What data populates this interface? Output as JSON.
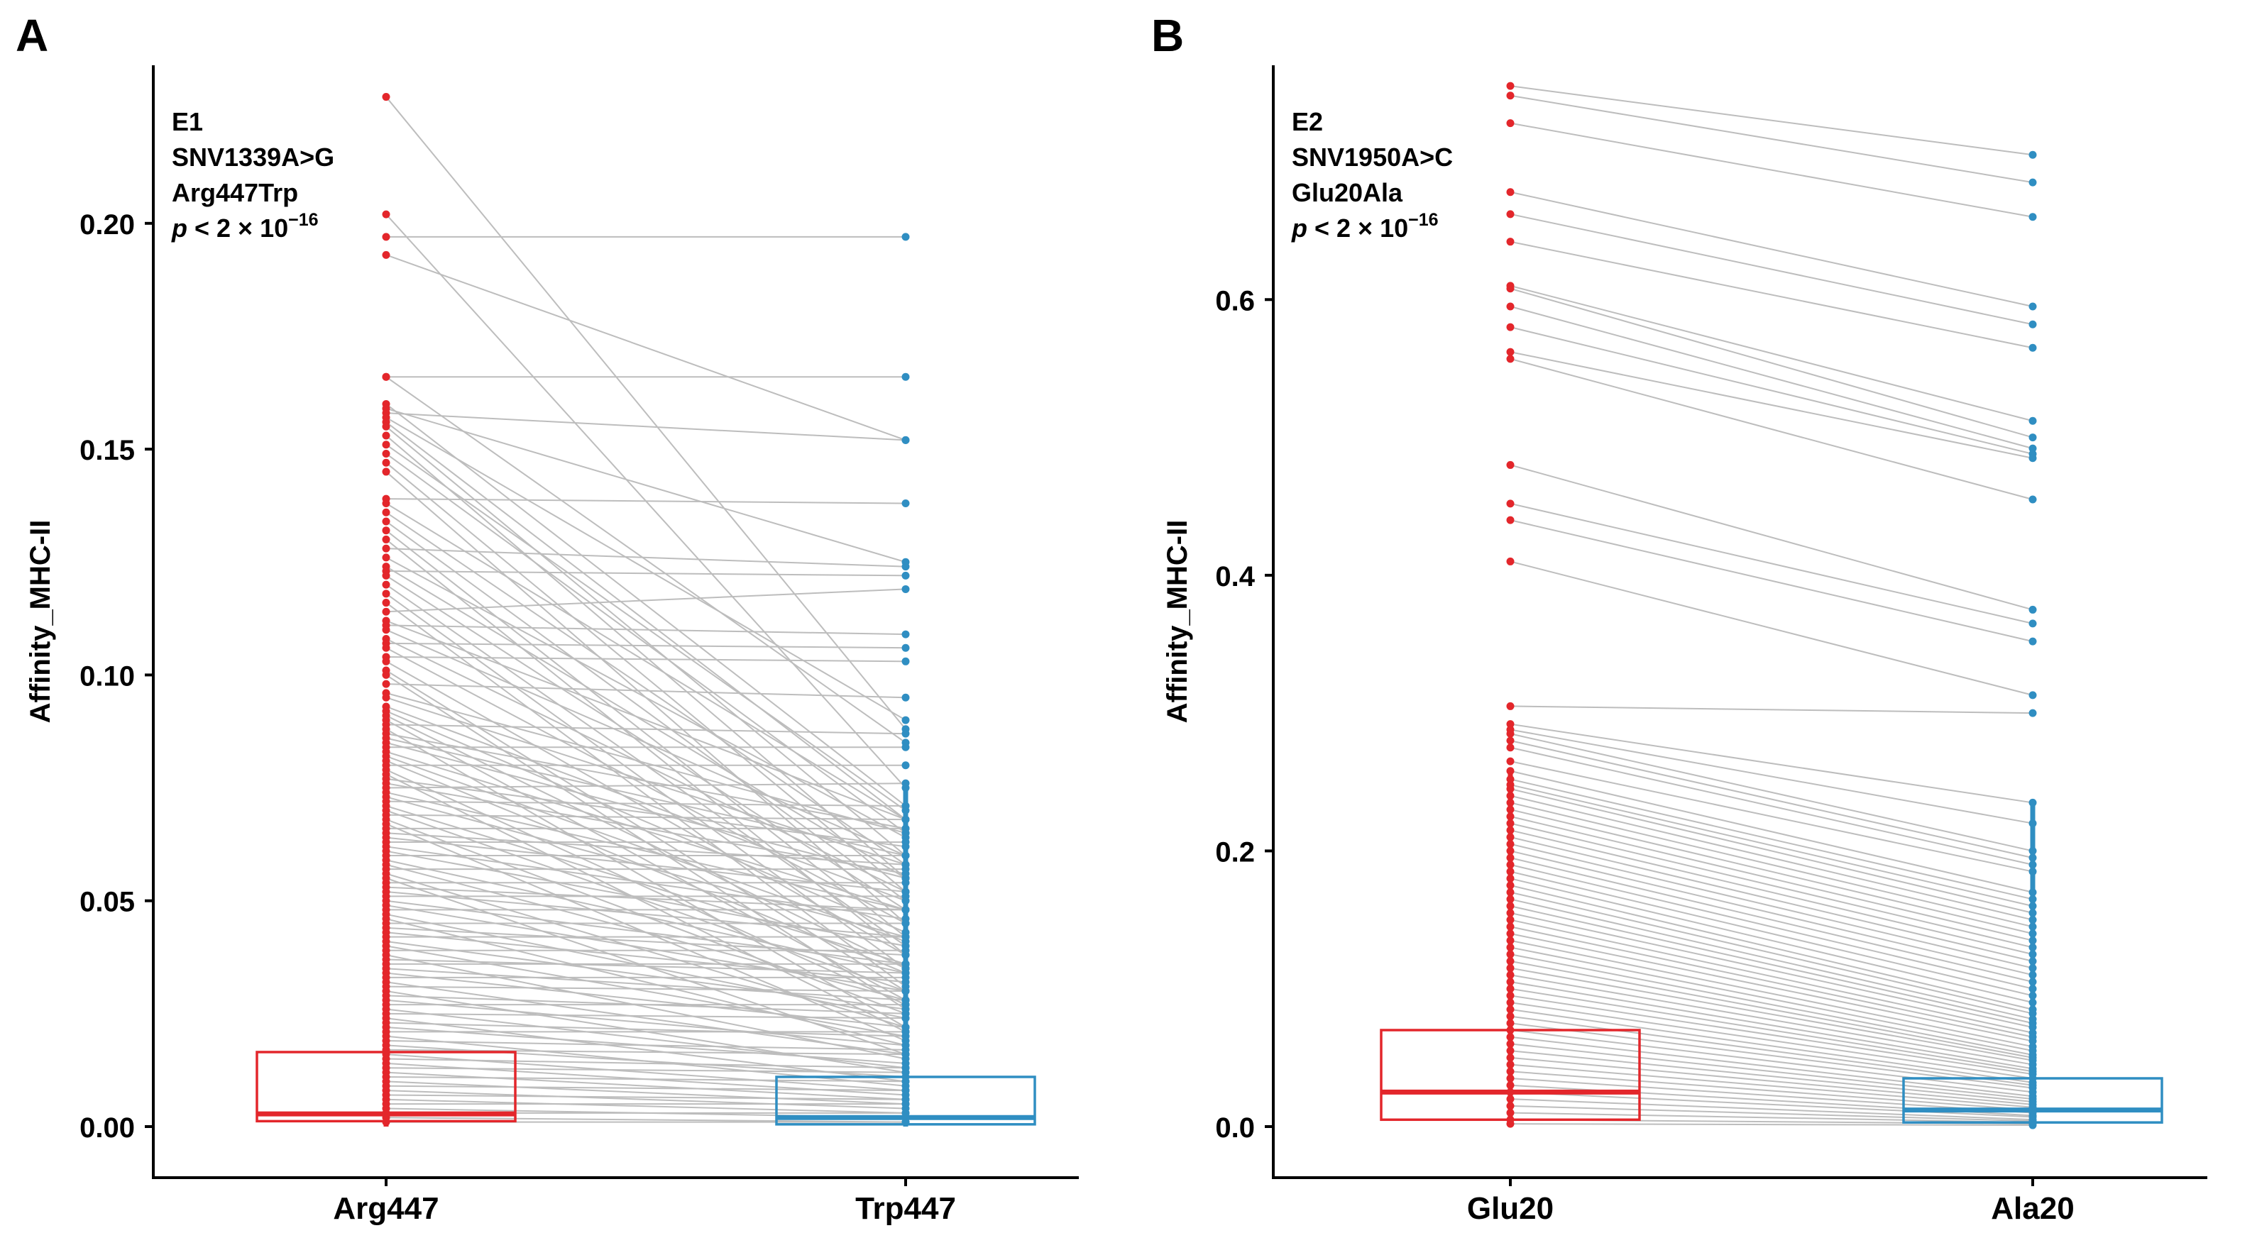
{
  "chart_data": [
    {
      "type": "paired_dot_box",
      "panel_label": "A",
      "ylabel": "Affinity_MHC-II",
      "ylim": [
        0,
        0.235
      ],
      "yticks": [
        0.0,
        0.05,
        0.1,
        0.15,
        0.2
      ],
      "ytick_labels": [
        "0.00",
        "0.05",
        "0.10",
        "0.15",
        "0.20"
      ],
      "categories": [
        "Arg447",
        "Trp447"
      ],
      "colors": [
        "#e3262b",
        "#2f8ec2"
      ],
      "annotation": {
        "lines": [
          "E1",
          "SNV1339A>G",
          "Arg447Trp"
        ],
        "p_prefix": "p",
        "p_rest": " < 2 × 10",
        "p_exponent": "−16"
      },
      "boxes": [
        {
          "q1": 0.0012,
          "median": 0.0028,
          "q3": 0.0165
        },
        {
          "q1": 0.0005,
          "median": 0.002,
          "q3": 0.011
        }
      ],
      "pairs": [
        [
          0.228,
          0.088
        ],
        [
          0.202,
          0.075
        ],
        [
          0.197,
          0.197
        ],
        [
          0.193,
          0.152
        ],
        [
          0.166,
          0.166
        ],
        [
          0.166,
          0.085
        ],
        [
          0.16,
          0.071
        ],
        [
          0.159,
          0.125
        ],
        [
          0.158,
          0.152
        ],
        [
          0.157,
          0.09
        ],
        [
          0.156,
          0.068
        ],
        [
          0.155,
          0.06
        ],
        [
          0.153,
          0.055
        ],
        [
          0.151,
          0.07
        ],
        [
          0.149,
          0.065
        ],
        [
          0.147,
          0.052
        ],
        [
          0.145,
          0.045
        ],
        [
          0.139,
          0.138
        ],
        [
          0.138,
          0.068
        ],
        [
          0.136,
          0.058
        ],
        [
          0.134,
          0.05
        ],
        [
          0.132,
          0.042
        ],
        [
          0.13,
          0.038
        ],
        [
          0.128,
          0.124
        ],
        [
          0.126,
          0.064
        ],
        [
          0.124,
          0.055
        ],
        [
          0.123,
          0.122
        ],
        [
          0.122,
          0.048
        ],
        [
          0.12,
          0.04
        ],
        [
          0.118,
          0.035
        ],
        [
          0.116,
          0.031
        ],
        [
          0.114,
          0.119
        ],
        [
          0.112,
          0.068
        ],
        [
          0.111,
          0.109
        ],
        [
          0.11,
          0.06
        ],
        [
          0.108,
          0.052
        ],
        [
          0.107,
          0.106
        ],
        [
          0.106,
          0.045
        ],
        [
          0.104,
          0.103
        ],
        [
          0.103,
          0.038
        ],
        [
          0.101,
          0.03
        ],
        [
          0.1,
          0.026
        ],
        [
          0.098,
          0.095
        ],
        [
          0.096,
          0.065
        ],
        [
          0.095,
          0.058
        ],
        [
          0.093,
          0.05
        ],
        [
          0.092,
          0.043
        ],
        [
          0.091,
          0.035
        ],
        [
          0.09,
          0.028
        ],
        [
          0.089,
          0.087
        ],
        [
          0.088,
          0.022
        ],
        [
          0.087,
          0.066
        ],
        [
          0.086,
          0.06
        ],
        [
          0.085,
          0.055
        ],
        [
          0.084,
          0.084
        ],
        [
          0.083,
          0.048
        ],
        [
          0.082,
          0.041
        ],
        [
          0.081,
          0.034
        ],
        [
          0.08,
          0.08
        ],
        [
          0.079,
          0.027
        ],
        [
          0.078,
          0.021
        ],
        [
          0.077,
          0.062
        ],
        [
          0.076,
          0.056
        ],
        [
          0.075,
          0.076
        ],
        [
          0.074,
          0.048
        ],
        [
          0.073,
          0.042
        ],
        [
          0.072,
          0.071
        ],
        [
          0.071,
          0.036
        ],
        [
          0.07,
          0.03
        ],
        [
          0.069,
          0.068
        ],
        [
          0.068,
          0.025
        ],
        [
          0.067,
          0.019
        ],
        [
          0.066,
          0.066
        ],
        [
          0.065,
          0.058
        ],
        [
          0.064,
          0.052
        ],
        [
          0.063,
          0.063
        ],
        [
          0.062,
          0.046
        ],
        [
          0.061,
          0.04
        ],
        [
          0.06,
          0.06
        ],
        [
          0.059,
          0.034
        ],
        [
          0.058,
          0.028
        ],
        [
          0.057,
          0.057
        ],
        [
          0.056,
          0.022
        ],
        [
          0.055,
          0.016
        ],
        [
          0.054,
          0.054
        ],
        [
          0.053,
          0.048
        ],
        [
          0.052,
          0.042
        ],
        [
          0.051,
          0.051
        ],
        [
          0.05,
          0.036
        ],
        [
          0.049,
          0.03
        ],
        [
          0.048,
          0.048
        ],
        [
          0.047,
          0.024
        ],
        [
          0.046,
          0.018
        ],
        [
          0.045,
          0.045
        ],
        [
          0.044,
          0.038
        ],
        [
          0.043,
          0.032
        ],
        [
          0.042,
          0.042
        ],
        [
          0.041,
          0.026
        ],
        [
          0.04,
          0.02
        ],
        [
          0.039,
          0.039
        ],
        [
          0.038,
          0.015
        ],
        [
          0.037,
          0.034
        ],
        [
          0.036,
          0.036
        ],
        [
          0.035,
          0.028
        ],
        [
          0.034,
          0.022
        ],
        [
          0.033,
          0.033
        ],
        [
          0.032,
          0.016
        ],
        [
          0.031,
          0.03
        ],
        [
          0.03,
          0.012
        ],
        [
          0.029,
          0.025
        ],
        [
          0.028,
          0.018
        ],
        [
          0.027,
          0.027
        ],
        [
          0.026,
          0.013
        ],
        [
          0.025,
          0.024
        ],
        [
          0.024,
          0.01
        ],
        [
          0.023,
          0.02
        ],
        [
          0.022,
          0.014
        ],
        [
          0.021,
          0.021
        ],
        [
          0.02,
          0.009
        ],
        [
          0.019,
          0.017
        ],
        [
          0.018,
          0.011
        ],
        [
          0.017,
          0.016
        ],
        [
          0.016,
          0.008
        ],
        [
          0.015,
          0.013
        ],
        [
          0.014,
          0.007
        ],
        [
          0.013,
          0.012
        ],
        [
          0.012,
          0.006
        ],
        [
          0.011,
          0.01
        ],
        [
          0.01,
          0.005
        ],
        [
          0.009,
          0.008
        ],
        [
          0.008,
          0.004
        ],
        [
          0.007,
          0.006
        ],
        [
          0.006,
          0.003
        ],
        [
          0.005,
          0.005
        ],
        [
          0.004,
          0.002
        ],
        [
          0.003,
          0.003
        ],
        [
          0.002,
          0.001
        ],
        [
          0.001,
          0.001
        ]
      ]
    },
    {
      "type": "paired_dot_box",
      "panel_label": "B",
      "ylabel": "Affinity_MHC-II",
      "ylim": [
        0,
        0.77
      ],
      "yticks": [
        0.0,
        0.2,
        0.4,
        0.6
      ],
      "ytick_labels": [
        "0.0",
        "0.2",
        "0.4",
        "0.6"
      ],
      "categories": [
        "Glu20",
        "Ala20"
      ],
      "colors": [
        "#e3262b",
        "#2f8ec2"
      ],
      "annotation": {
        "lines": [
          "E2",
          "SNV1950A>C",
          "Glu20Ala"
        ],
        "p_prefix": "p",
        "p_rest": " < 2 × 10",
        "p_exponent": "−16"
      },
      "boxes": [
        {
          "q1": 0.005,
          "median": 0.025,
          "q3": 0.07
        },
        {
          "q1": 0.003,
          "median": 0.012,
          "q3": 0.035
        }
      ],
      "pairs": [
        [
          0.755,
          0.705
        ],
        [
          0.748,
          0.685
        ],
        [
          0.728,
          0.66
        ],
        [
          0.678,
          0.595
        ],
        [
          0.662,
          0.582
        ],
        [
          0.642,
          0.565
        ],
        [
          0.61,
          0.512
        ],
        [
          0.608,
          0.5
        ],
        [
          0.595,
          0.492
        ],
        [
          0.58,
          0.488
        ],
        [
          0.562,
          0.485
        ],
        [
          0.557,
          0.455
        ],
        [
          0.48,
          0.375
        ],
        [
          0.452,
          0.365
        ],
        [
          0.44,
          0.352
        ],
        [
          0.41,
          0.313
        ],
        [
          0.305,
          0.3
        ],
        [
          0.292,
          0.235
        ],
        [
          0.288,
          0.22
        ],
        [
          0.285,
          0.2
        ],
        [
          0.28,
          0.195
        ],
        [
          0.275,
          0.19
        ],
        [
          0.265,
          0.185
        ],
        [
          0.258,
          0.17
        ],
        [
          0.252,
          0.165
        ],
        [
          0.248,
          0.16
        ],
        [
          0.245,
          0.155
        ],
        [
          0.24,
          0.15
        ],
        [
          0.235,
          0.145
        ],
        [
          0.23,
          0.14
        ],
        [
          0.225,
          0.135
        ],
        [
          0.22,
          0.13
        ],
        [
          0.215,
          0.125
        ],
        [
          0.21,
          0.12
        ],
        [
          0.205,
          0.115
        ],
        [
          0.2,
          0.11
        ],
        [
          0.195,
          0.105
        ],
        [
          0.19,
          0.1
        ],
        [
          0.185,
          0.095
        ],
        [
          0.18,
          0.09
        ],
        [
          0.175,
          0.085
        ],
        [
          0.17,
          0.082
        ],
        [
          0.165,
          0.078
        ],
        [
          0.16,
          0.075
        ],
        [
          0.155,
          0.072
        ],
        [
          0.15,
          0.068
        ],
        [
          0.145,
          0.065
        ],
        [
          0.14,
          0.062
        ],
        [
          0.135,
          0.058
        ],
        [
          0.13,
          0.055
        ],
        [
          0.125,
          0.052
        ],
        [
          0.12,
          0.05
        ],
        [
          0.115,
          0.048
        ],
        [
          0.11,
          0.045
        ],
        [
          0.105,
          0.042
        ],
        [
          0.1,
          0.04
        ],
        [
          0.095,
          0.038
        ],
        [
          0.09,
          0.035
        ],
        [
          0.085,
          0.032
        ],
        [
          0.08,
          0.03
        ],
        [
          0.075,
          0.028
        ],
        [
          0.07,
          0.025
        ],
        [
          0.065,
          0.022
        ],
        [
          0.06,
          0.02
        ],
        [
          0.055,
          0.018
        ],
        [
          0.05,
          0.016
        ],
        [
          0.045,
          0.014
        ],
        [
          0.04,
          0.012
        ],
        [
          0.035,
          0.01
        ],
        [
          0.03,
          0.008
        ],
        [
          0.025,
          0.007
        ],
        [
          0.02,
          0.005
        ],
        [
          0.015,
          0.004
        ],
        [
          0.01,
          0.003
        ],
        [
          0.005,
          0.002
        ],
        [
          0.002,
          0.001
        ]
      ]
    }
  ]
}
